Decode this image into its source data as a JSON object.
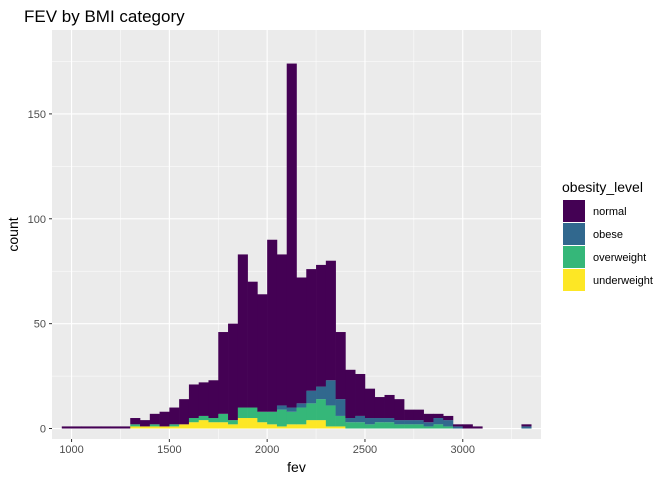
{
  "chart_data": {
    "type": "bar",
    "stacked": true,
    "title": "FEV by BMI category",
    "xlabel": "fev",
    "ylabel": "count",
    "xlim": [
      900,
      3400
    ],
    "ylim": [
      -5,
      190
    ],
    "xticks": [
      1000,
      1500,
      2000,
      2500,
      3000
    ],
    "yticks": [
      0,
      50,
      100,
      150
    ],
    "grid": true,
    "legend_title": "obesity_level",
    "legend_position": "right",
    "bins": [
      [
        950,
        1000
      ],
      [
        1000,
        1050
      ],
      [
        1050,
        1100
      ],
      [
        1100,
        1150
      ],
      [
        1150,
        1200
      ],
      [
        1200,
        1250
      ],
      [
        1250,
        1300
      ],
      [
        1300,
        1350
      ],
      [
        1350,
        1400
      ],
      [
        1400,
        1450
      ],
      [
        1450,
        1500
      ],
      [
        1500,
        1550
      ],
      [
        1550,
        1600
      ],
      [
        1600,
        1650
      ],
      [
        1650,
        1700
      ],
      [
        1700,
        1750
      ],
      [
        1750,
        1800
      ],
      [
        1800,
        1850
      ],
      [
        1850,
        1900
      ],
      [
        1900,
        1950
      ],
      [
        1950,
        2000
      ],
      [
        2000,
        2050
      ],
      [
        2050,
        2100
      ],
      [
        2100,
        2150
      ],
      [
        2150,
        2200
      ],
      [
        2200,
        2250
      ],
      [
        2250,
        2300
      ],
      [
        2300,
        2350
      ],
      [
        2350,
        2400
      ],
      [
        2400,
        2450
      ],
      [
        2450,
        2500
      ],
      [
        2500,
        2550
      ],
      [
        2550,
        2600
      ],
      [
        2600,
        2650
      ],
      [
        2650,
        2700
      ],
      [
        2700,
        2750
      ],
      [
        2750,
        2800
      ],
      [
        2800,
        2850
      ],
      [
        2850,
        2900
      ],
      [
        2900,
        2950
      ],
      [
        2950,
        3000
      ],
      [
        3000,
        3050
      ],
      [
        3050,
        3100
      ],
      [
        3100,
        3150
      ],
      [
        3150,
        3200
      ],
      [
        3200,
        3250
      ],
      [
        3250,
        3300
      ],
      [
        3300,
        3350
      ]
    ],
    "series": [
      {
        "name": "underweight",
        "color": "#FDE725",
        "values": [
          0,
          0,
          0,
          0,
          0,
          0,
          0,
          1,
          1,
          1,
          1,
          1,
          2,
          3,
          4,
          3,
          3,
          2,
          5,
          5,
          3,
          2,
          1,
          2,
          2,
          4,
          4,
          1,
          1,
          0,
          0,
          0,
          0,
          0,
          0,
          0,
          0,
          0,
          0,
          0,
          0,
          0,
          0,
          0,
          0,
          0,
          0,
          0
        ]
      },
      {
        "name": "overweight",
        "color": "#35B779",
        "values": [
          0,
          0,
          0,
          0,
          0,
          0,
          0,
          1,
          0,
          1,
          0,
          1,
          0,
          2,
          2,
          2,
          4,
          2,
          5,
          5,
          5,
          6,
          8,
          6,
          8,
          8,
          10,
          10,
          5,
          3,
          3,
          2,
          3,
          3,
          2,
          2,
          2,
          1,
          2,
          1,
          0,
          0,
          0,
          0,
          0,
          0,
          0,
          0
        ]
      },
      {
        "name": "obese",
        "color": "#31688E",
        "values": [
          0,
          0,
          0,
          0,
          0,
          0,
          0,
          0,
          0,
          0,
          0,
          0,
          0,
          0,
          0,
          0,
          0,
          0,
          0,
          0,
          0,
          0,
          2,
          2,
          2,
          6,
          6,
          12,
          8,
          2,
          3,
          3,
          2,
          2,
          2,
          2,
          2,
          2,
          3,
          3,
          1,
          0,
          0,
          0,
          0,
          0,
          0,
          1
        ]
      },
      {
        "name": "normal",
        "color": "#440154",
        "values": [
          1,
          1,
          1,
          1,
          1,
          1,
          1,
          3,
          3,
          5,
          7,
          8,
          12,
          16,
          16,
          18,
          39,
          46,
          73,
          60,
          56,
          82,
          72,
          164,
          60,
          58,
          58,
          57,
          32,
          23,
          20,
          14,
          10,
          11,
          10,
          5,
          5,
          4,
          2,
          2,
          1,
          2,
          1,
          0,
          0,
          0,
          0,
          1
        ]
      }
    ],
    "totals": [
      1,
      1,
      1,
      1,
      1,
      1,
      1,
      5,
      4,
      7,
      8,
      10,
      14,
      21,
      22,
      23,
      46,
      50,
      83,
      70,
      64,
      90,
      83,
      174,
      72,
      76,
      78,
      80,
      46,
      28,
      26,
      19,
      15,
      16,
      14,
      9,
      9,
      7,
      7,
      6,
      2,
      2,
      1,
      0,
      0,
      0,
      0,
      2
    ]
  }
}
